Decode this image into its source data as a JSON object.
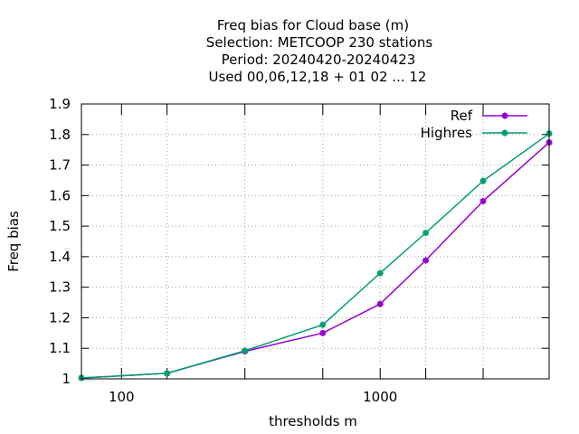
{
  "chart_data": {
    "type": "line",
    "title_lines": [
      "Freq bias  for Cloud base (m)",
      "Selection: METCOOP    230 stations",
      "Period: 20240420-20240423",
      "Used  00,06,12,18 + 01 02 ... 12"
    ],
    "xlabel": "thresholds m",
    "ylabel": "Freq bias",
    "x_scale": "log",
    "xlim": [
      70,
      4500
    ],
    "ylim": [
      1.0,
      1.9
    ],
    "x_tick_labels": [
      {
        "value": 100,
        "label": "100"
      },
      {
        "value": 1000,
        "label": "1000"
      }
    ],
    "x_ticks": [
      70,
      100,
      150,
      300,
      600,
      1000,
      1500,
      2500,
      4500
    ],
    "y_ticks": [
      1.0,
      1.1,
      1.2,
      1.3,
      1.4,
      1.5,
      1.6,
      1.7,
      1.8,
      1.9
    ],
    "y_tick_labels": [
      "1",
      "1.1",
      "1.2",
      "1.3",
      "1.4",
      "1.5",
      "1.6",
      "1.7",
      "1.8",
      "1.9"
    ],
    "grid": true,
    "legend_position": "top-right",
    "x": [
      70,
      150,
      300,
      600,
      1000,
      1500,
      2500,
      4500
    ],
    "series": [
      {
        "name": "Ref",
        "color": "#9400d3",
        "values": [
          1.003,
          1.018,
          1.09,
          1.15,
          1.245,
          1.388,
          1.582,
          1.774
        ]
      },
      {
        "name": "Highres",
        "color": "#009e73",
        "values": [
          1.003,
          1.018,
          1.092,
          1.177,
          1.346,
          1.478,
          1.648,
          1.803
        ]
      }
    ]
  }
}
